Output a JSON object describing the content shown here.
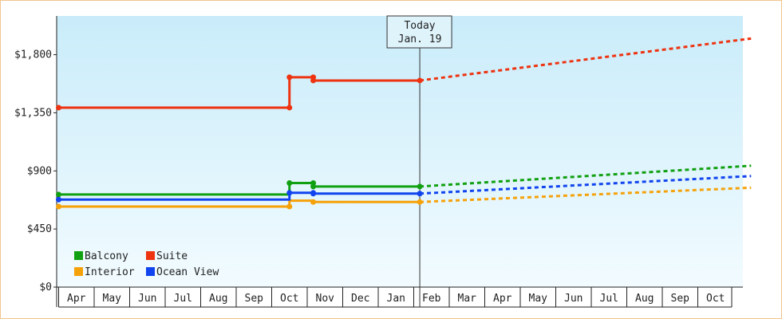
{
  "chart_data": {
    "type": "line",
    "title": "",
    "xlabel": "",
    "ylabel": "",
    "x_tick_labels": [
      "Apr",
      "May",
      "Jun",
      "Jul",
      "Aug",
      "Sep",
      "Oct",
      "Nov",
      "Dec",
      "Jan",
      "Feb",
      "Mar",
      "Apr",
      "May",
      "Jun",
      "Jul",
      "Aug",
      "Sep",
      "Oct"
    ],
    "y_tick_labels": [
      "$0",
      "$450",
      "$900",
      "$1,350",
      "$1,800"
    ],
    "ylim": [
      0,
      2100
    ],
    "grid": false,
    "legend_placement": "bottom-left",
    "today_marker": {
      "line1": "Today",
      "line2": "Jan. 19",
      "x": 9.67
    },
    "series": [
      {
        "name": "Balcony",
        "color": "#11a011",
        "history": [
          [
            -0.5,
            717
          ],
          [
            6.0,
            717
          ],
          [
            6.0,
            806
          ],
          [
            6.67,
            806
          ],
          [
            6.67,
            779
          ],
          [
            9.67,
            779
          ]
        ],
        "history_markers": [
          0,
          2,
          3,
          4,
          5
        ],
        "forecast": [
          [
            9.67,
            779
          ],
          [
            19.0,
            940
          ]
        ]
      },
      {
        "name": "Suite",
        "color": "#ee3311",
        "history": [
          [
            -0.5,
            1390
          ],
          [
            6.0,
            1390
          ],
          [
            6.0,
            1625
          ],
          [
            6.67,
            1625
          ],
          [
            6.67,
            1600
          ],
          [
            9.67,
            1600
          ]
        ],
        "history_markers": [
          0,
          1,
          2,
          3,
          4,
          5
        ],
        "forecast": [
          [
            9.67,
            1600
          ],
          [
            19.0,
            1925
          ]
        ]
      },
      {
        "name": "Interior",
        "color": "#f5a20a",
        "history": [
          [
            -0.5,
            624
          ],
          [
            6.0,
            624
          ],
          [
            6.0,
            669
          ],
          [
            6.67,
            669
          ],
          [
            6.67,
            659
          ],
          [
            9.67,
            659
          ]
        ],
        "history_markers": [
          0,
          1,
          4,
          5
        ],
        "forecast": [
          [
            9.67,
            659
          ],
          [
            19.0,
            770
          ]
        ]
      },
      {
        "name": "Ocean View",
        "color": "#1144ee",
        "history": [
          [
            -0.5,
            678
          ],
          [
            6.0,
            678
          ],
          [
            6.0,
            730
          ],
          [
            6.67,
            730
          ],
          [
            6.67,
            724
          ],
          [
            9.67,
            724
          ]
        ],
        "history_markers": [
          0,
          2,
          3,
          4,
          5
        ],
        "forecast": [
          [
            9.67,
            724
          ],
          [
            19.0,
            860
          ]
        ]
      }
    ]
  }
}
